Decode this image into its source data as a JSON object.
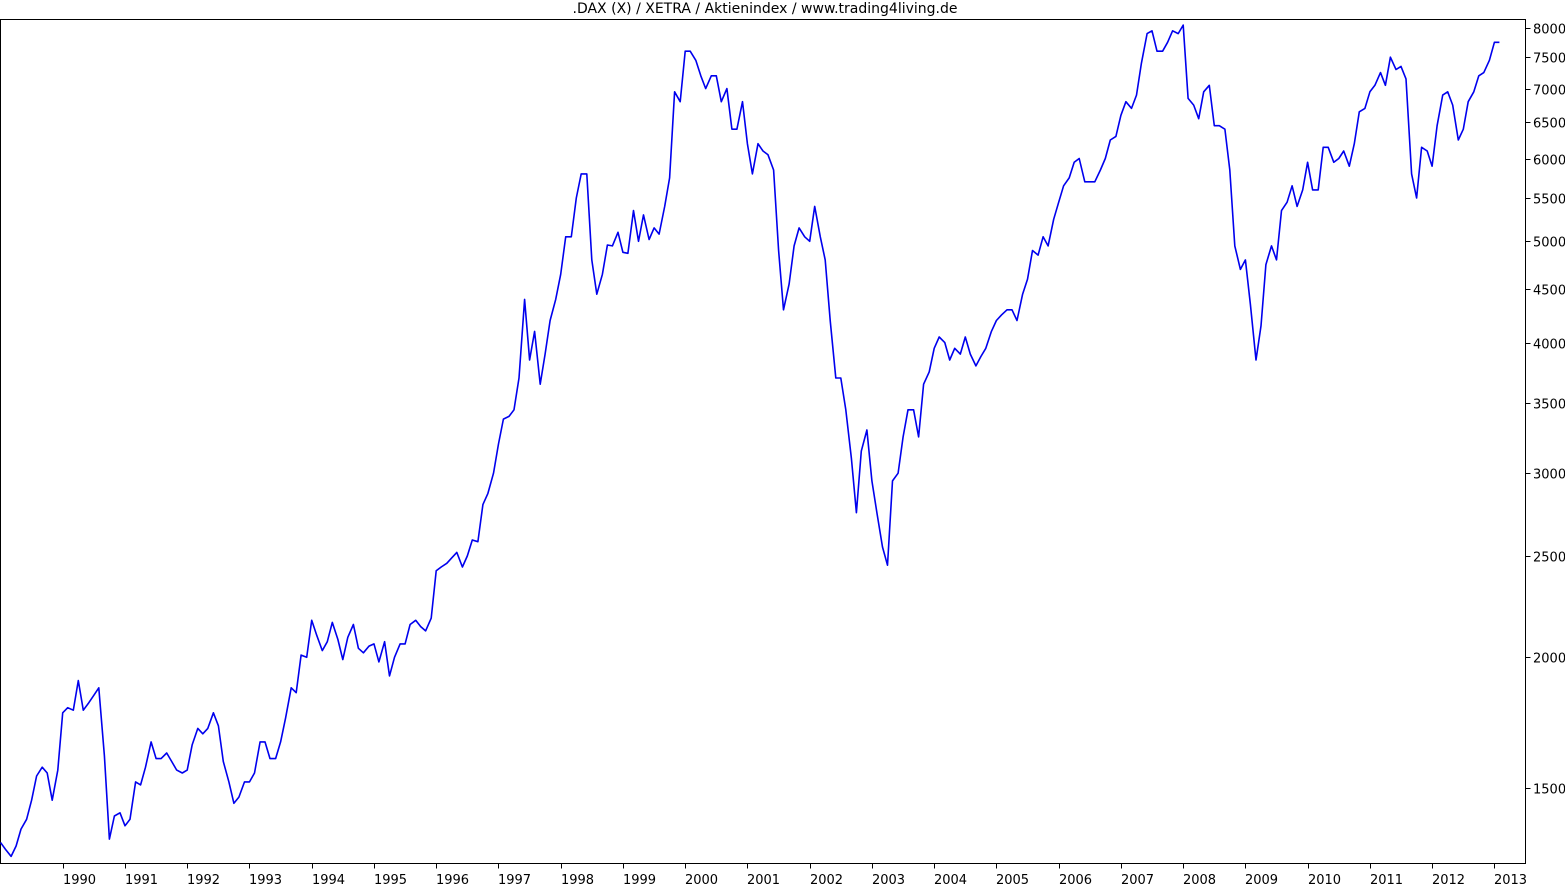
{
  "chart_data": {
    "type": "line",
    "title": ".DAX (X) / XETRA / Aktienindex / www.trading4living.de",
    "xlabel": "",
    "ylabel": "",
    "y_scale": "log",
    "ylim": [
      1270,
      8150
    ],
    "xlim": [
      1989.0,
      2013.5
    ],
    "x_ticks": [
      "1990",
      "1991",
      "1992",
      "1993",
      "1994",
      "1995",
      "1996",
      "1997",
      "1998",
      "1999",
      "2000",
      "2001",
      "2002",
      "2003",
      "2004",
      "2005",
      "2006",
      "2007",
      "2008",
      "2009",
      "2010",
      "2011",
      "2012",
      "2013"
    ],
    "y_ticks": [
      8000,
      7500,
      7000,
      6500,
      6000,
      5500,
      5000,
      4500,
      4000,
      3500,
      3000,
      2500,
      2000,
      1500
    ],
    "grid": false,
    "legend": "none",
    "line_color": "#0000ee",
    "series": [
      {
        "x": [
          1989.0,
          1989.08,
          1989.17,
          1989.25,
          1989.33,
          1989.42,
          1989.5,
          1989.58,
          1989.67,
          1989.75,
          1989.83,
          1989.92,
          1990.0,
          1990.08,
          1990.17,
          1990.25,
          1990.33,
          1990.42,
          1990.5,
          1990.58,
          1990.67,
          1990.75,
          1990.83,
          1990.92,
          1991.0,
          1991.08,
          1991.17,
          1991.25,
          1991.33,
          1991.42,
          1991.5,
          1991.58,
          1991.67,
          1991.75,
          1991.83,
          1991.92,
          1992.0,
          1992.08,
          1992.17,
          1992.25,
          1992.33,
          1992.42,
          1992.5,
          1992.58,
          1992.67,
          1992.75,
          1992.83,
          1992.92,
          1993.0,
          1993.08,
          1993.17,
          1993.25,
          1993.33,
          1993.42,
          1993.5,
          1993.58,
          1993.67,
          1993.75,
          1993.83,
          1993.92,
          1994.0,
          1994.08,
          1994.17,
          1994.25,
          1994.33,
          1994.42,
          1994.5,
          1994.58,
          1994.67,
          1994.75,
          1994.83,
          1994.92,
          1995.0,
          1995.08,
          1995.17,
          1995.25,
          1995.33,
          1995.42,
          1995.5,
          1995.58,
          1995.67,
          1995.75,
          1995.83,
          1995.92,
          1996.0,
          1996.08,
          1996.17,
          1996.25,
          1996.33,
          1996.42,
          1996.5,
          1996.58,
          1996.67,
          1996.75,
          1996.83,
          1996.92,
          1997.0,
          1997.08,
          1997.17,
          1997.25,
          1997.33,
          1997.42,
          1997.5,
          1997.58,
          1997.67,
          1997.75,
          1997.83,
          1997.92,
          1998.0,
          1998.08,
          1998.17,
          1998.25,
          1998.33,
          1998.42,
          1998.5,
          1998.58,
          1998.67,
          1998.75,
          1998.83,
          1998.92,
          1999.0,
          1999.08,
          1999.17,
          1999.25,
          1999.33,
          1999.42,
          1999.5,
          1999.58,
          1999.67,
          1999.75,
          1999.83,
          1999.92,
          2000.0,
          2000.08,
          2000.17,
          2000.25,
          2000.33,
          2000.42,
          2000.5,
          2000.58,
          2000.67,
          2000.75,
          2000.83,
          2000.92,
          2001.0,
          2001.08,
          2001.17,
          2001.25,
          2001.33,
          2001.42,
          2001.5,
          2001.58,
          2001.67,
          2001.75,
          2001.83,
          2001.92,
          2002.0,
          2002.08,
          2002.17,
          2002.25,
          2002.33,
          2002.42,
          2002.5,
          2002.58,
          2002.67,
          2002.75,
          2002.83,
          2002.92,
          2003.0,
          2003.08,
          2003.17,
          2003.25,
          2003.33,
          2003.42,
          2003.5,
          2003.58,
          2003.67,
          2003.75,
          2003.83,
          2003.92,
          2004.0,
          2004.08,
          2004.17,
          2004.25,
          2004.33,
          2004.42,
          2004.5,
          2004.58,
          2004.67,
          2004.75,
          2004.83,
          2004.92,
          2005.0,
          2005.08,
          2005.17,
          2005.25,
          2005.33,
          2005.42,
          2005.5,
          2005.58,
          2005.67,
          2005.75,
          2005.83,
          2005.92,
          2006.0,
          2006.08,
          2006.17,
          2006.25,
          2006.33,
          2006.42,
          2006.5,
          2006.58,
          2006.67,
          2006.75,
          2006.83,
          2006.92,
          2007.0,
          2007.08,
          2007.17,
          2007.25,
          2007.33,
          2007.42,
          2007.5,
          2007.58,
          2007.67,
          2007.75,
          2007.83,
          2007.92,
          2008.0,
          2008.08,
          2008.17,
          2008.25,
          2008.33,
          2008.42,
          2008.5,
          2008.58,
          2008.67,
          2008.75,
          2008.83,
          2008.92,
          2009.0,
          2009.08,
          2009.17,
          2009.25,
          2009.33,
          2009.42,
          2009.5,
          2009.58,
          2009.67,
          2009.75,
          2009.83,
          2009.92,
          2010.0,
          2010.08,
          2010.17,
          2010.25,
          2010.33,
          2010.42,
          2010.5,
          2010.58,
          2010.67,
          2010.75,
          2010.83,
          2010.92,
          2011.0,
          2011.08,
          2011.17,
          2011.25,
          2011.33,
          2011.42,
          2011.5,
          2011.58,
          2011.67,
          2011.75,
          2011.83,
          2011.92,
          2012.0,
          2012.08,
          2012.17,
          2012.25,
          2012.33,
          2012.42,
          2012.5,
          2012.58,
          2012.67,
          2012.75,
          2012.83,
          2012.92,
          2013.0,
          2013.08
        ],
        "y": [
          1330,
          1310,
          1290,
          1320,
          1370,
          1400,
          1460,
          1540,
          1570,
          1550,
          1460,
          1560,
          1770,
          1790,
          1780,
          1900,
          1780,
          1810,
          1840,
          1870,
          1610,
          1340,
          1410,
          1420,
          1380,
          1400,
          1520,
          1510,
          1570,
          1660,
          1600,
          1600,
          1620,
          1590,
          1560,
          1550,
          1560,
          1650,
          1710,
          1690,
          1710,
          1770,
          1720,
          1590,
          1520,
          1450,
          1470,
          1520,
          1520,
          1550,
          1660,
          1660,
          1600,
          1600,
          1660,
          1750,
          1870,
          1850,
          2010,
          2000,
          2170,
          2100,
          2030,
          2070,
          2160,
          2080,
          1990,
          2090,
          2150,
          2040,
          2020,
          2050,
          2060,
          1980,
          2070,
          1920,
          2000,
          2060,
          2060,
          2150,
          2170,
          2140,
          2120,
          2180,
          2420,
          2440,
          2460,
          2490,
          2520,
          2440,
          2500,
          2590,
          2580,
          2800,
          2870,
          3000,
          3200,
          3380,
          3400,
          3450,
          3700,
          4400,
          3850,
          4100,
          3650,
          3900,
          4200,
          4400,
          4650,
          5050,
          5050,
          5500,
          5800,
          5800,
          4800,
          4450,
          4650,
          4960,
          4950,
          5100,
          4880,
          4870,
          5350,
          5000,
          5300,
          5020,
          5150,
          5080,
          5400,
          5750,
          6950,
          6800,
          7600,
          7600,
          7450,
          7200,
          7000,
          7200,
          7200,
          6800,
          7000,
          6400,
          6400,
          6800,
          6200,
          5800,
          6200,
          6100,
          6050,
          5850,
          4900,
          4300,
          4550,
          4950,
          5150,
          5050,
          5000,
          5400,
          5050,
          4800,
          4200,
          3700,
          3700,
          3450,
          3100,
          2750,
          3150,
          3300,
          2950,
          2750,
          2550,
          2450,
          2950,
          3000,
          3250,
          3450,
          3450,
          3250,
          3650,
          3750,
          3950,
          4050,
          4000,
          3850,
          3950,
          3900,
          4050,
          3900,
          3800,
          3880,
          3950,
          4100,
          4200,
          4250,
          4300,
          4300,
          4200,
          4450,
          4600,
          4900,
          4850,
          5050,
          4950,
          5250,
          5450,
          5650,
          5750,
          5950,
          6000,
          5700,
          5700,
          5700,
          5850,
          6000,
          6250,
          6300,
          6600,
          6800,
          6700,
          6900,
          7400,
          7900,
          7950,
          7600,
          7600,
          7750,
          7950,
          7900,
          8050,
          6850,
          6750,
          6550,
          6950,
          7050,
          6450,
          6450,
          6400,
          5850,
          4950,
          4700,
          4800,
          4350,
          3850,
          4150,
          4750,
          4950,
          4800,
          5350,
          5450,
          5650,
          5400,
          5600,
          5950,
          5600,
          5600,
          6150,
          6150,
          5950,
          6000,
          6100,
          5900,
          6200,
          6650,
          6700,
          6950,
          7050,
          7250,
          7050,
          7500,
          7300,
          7350,
          7150,
          5800,
          5500,
          6150,
          6100,
          5900,
          6450,
          6900,
          6950,
          6750,
          6250,
          6400,
          6800,
          6950,
          7200,
          7250,
          7450,
          7750,
          7750
        ]
      }
    ]
  }
}
